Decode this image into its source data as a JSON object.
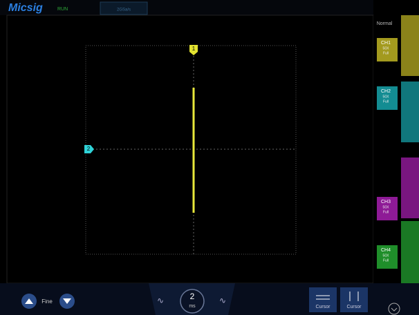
{
  "header": {
    "brand": "Micsig",
    "status": "RUN",
    "sample_rate": "2GSa/s"
  },
  "trigger_mode": "Normal",
  "channels": [
    {
      "label": "CH1",
      "probe": "50X",
      "bandwidth": "Full",
      "color": "#a39a1e"
    },
    {
      "label": "CH2",
      "probe": "50X",
      "bandwidth": "Full",
      "color": "#138c92"
    },
    {
      "label": "CH3",
      "probe": "50X",
      "bandwidth": "Full",
      "color": "#8e1a96"
    },
    {
      "label": "CH4",
      "probe": "50X",
      "bandwidth": "Full",
      "color": "#1f8e2a"
    }
  ],
  "markers": {
    "trigger": "1",
    "channel_level": "2"
  },
  "bottom": {
    "fine_label": "Fine",
    "timebase_value": "2",
    "timebase_unit": "ms",
    "cursor_buttons": [
      "Cursor",
      "Cursor"
    ]
  }
}
